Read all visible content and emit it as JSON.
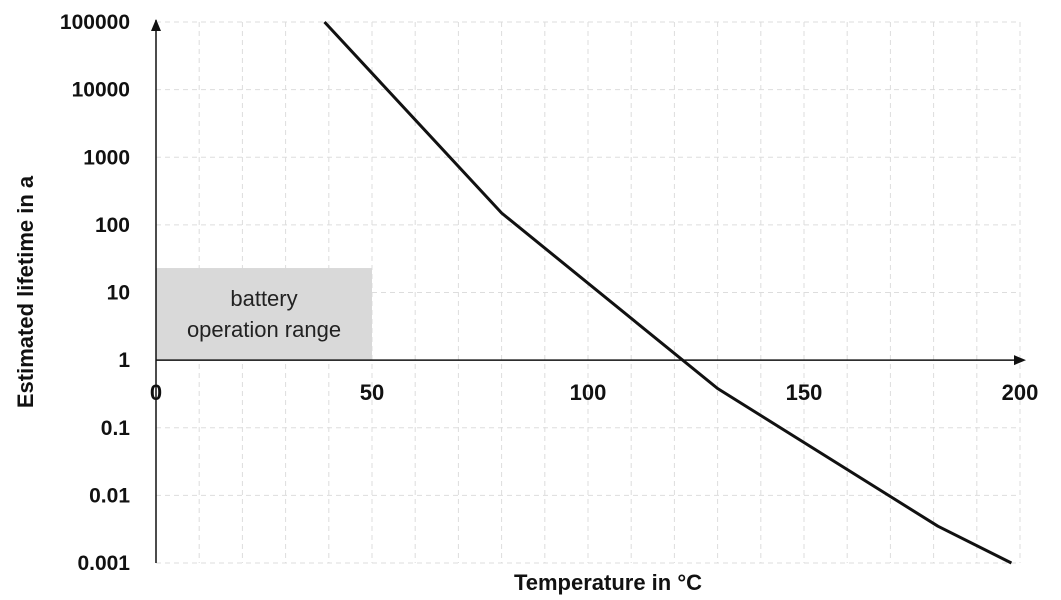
{
  "chart_data": {
    "type": "line",
    "xlabel": "Temperature in °C",
    "ylabel": "Estimated lifetime in a",
    "yscale": "log",
    "xlim": [
      0,
      200
    ],
    "ylim": [
      0.001,
      100000
    ],
    "x_ticks": [
      "0",
      "50",
      "100",
      "150",
      "200"
    ],
    "y_ticks": [
      "0.001",
      "0.01",
      "0.1",
      "1",
      "10",
      "100",
      "1000",
      "10000",
      "100000"
    ],
    "grid": true,
    "series": [
      {
        "x": [
          39,
          80,
          130,
          181,
          198
        ],
        "y": [
          100000,
          150,
          0.38,
          0.0035,
          0.001
        ]
      }
    ],
    "annotations": [
      {
        "text_lines": [
          "battery",
          "operation range"
        ],
        "x_range": [
          0,
          50
        ],
        "y_range": [
          1,
          23
        ]
      }
    ],
    "colors": {
      "line": "#111111",
      "band": "#d9d9d9",
      "grid": "#dddddd",
      "axis": "#111111"
    }
  }
}
